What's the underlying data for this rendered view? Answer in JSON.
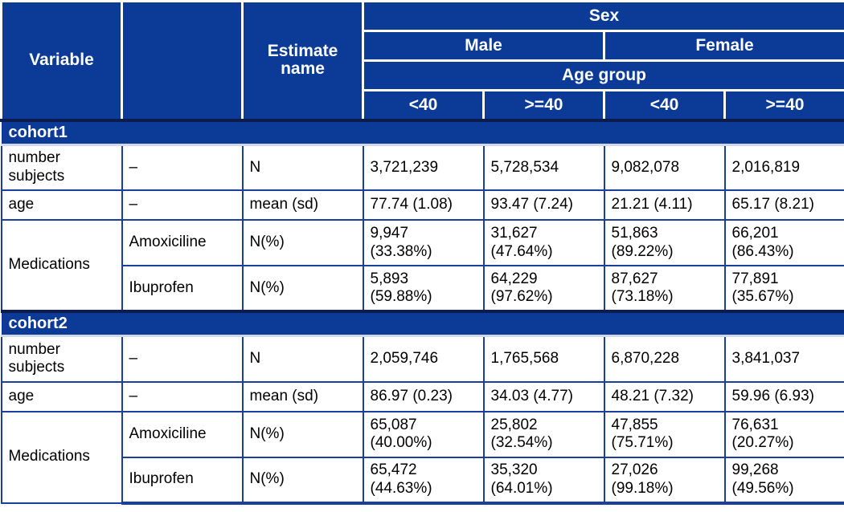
{
  "colors": {
    "header_bg": "#0b3a97",
    "body_border": "#1b3f9e",
    "band_top_line": "#0d1b4d",
    "band_bottom_line": "#d3d8e6",
    "header_text": "#ffffff",
    "body_text": "#000000"
  },
  "header": {
    "variable": "Variable",
    "blank": "",
    "estimate_name": "Estimate\nname",
    "sex": "Sex",
    "male": "Male",
    "female": "Female",
    "age_group": "Age group",
    "age_cols": [
      "<40",
      ">=40",
      "<40",
      ">=40"
    ]
  },
  "sections": [
    {
      "label": "cohort1",
      "rows": [
        {
          "variable": "number\nsubjects",
          "level": "–",
          "estimate": "N",
          "values": [
            "3,721,239",
            "5,728,534",
            "9,082,078",
            "2,016,819"
          ]
        },
        {
          "variable": "age",
          "level": "–",
          "estimate": "mean (sd)",
          "values": [
            "77.74 (1.08)",
            "93.47 (7.24)",
            "21.21 (4.11)",
            "65.17 (8.21)"
          ]
        },
        {
          "variable": "Medications",
          "level": "Amoxiciline",
          "estimate": "N(%)",
          "values": [
            "9,947\n(33.38%)",
            "31,627\n(47.64%)",
            "51,863\n(89.22%)",
            "66,201\n(86.43%)"
          ]
        },
        {
          "level": "Ibuprofen",
          "estimate": "N(%)",
          "values": [
            "5,893\n(59.88%)",
            "64,229\n(97.62%)",
            "87,627\n(73.18%)",
            "77,891\n(35.67%)"
          ]
        }
      ]
    },
    {
      "label": "cohort2",
      "rows": [
        {
          "variable": "number\nsubjects",
          "level": "–",
          "estimate": "N",
          "values": [
            "2,059,746",
            "1,765,568",
            "6,870,228",
            "3,841,037"
          ]
        },
        {
          "variable": "age",
          "level": "–",
          "estimate": "mean (sd)",
          "values": [
            "86.97 (0.23)",
            "34.03 (4.77)",
            "48.21 (7.32)",
            "59.96 (6.93)"
          ]
        },
        {
          "variable": "Medications",
          "level": "Amoxiciline",
          "estimate": "N(%)",
          "values": [
            "65,087\n(40.00%)",
            "25,802\n(32.54%)",
            "47,855\n(75.71%)",
            "76,631\n(20.27%)"
          ]
        },
        {
          "level": "Ibuprofen",
          "estimate": "N(%)",
          "values": [
            "65,472\n(44.63%)",
            "35,320\n(64.01%)",
            "27,026\n(99.18%)",
            "99,268\n(49.56%)"
          ]
        }
      ]
    }
  ]
}
